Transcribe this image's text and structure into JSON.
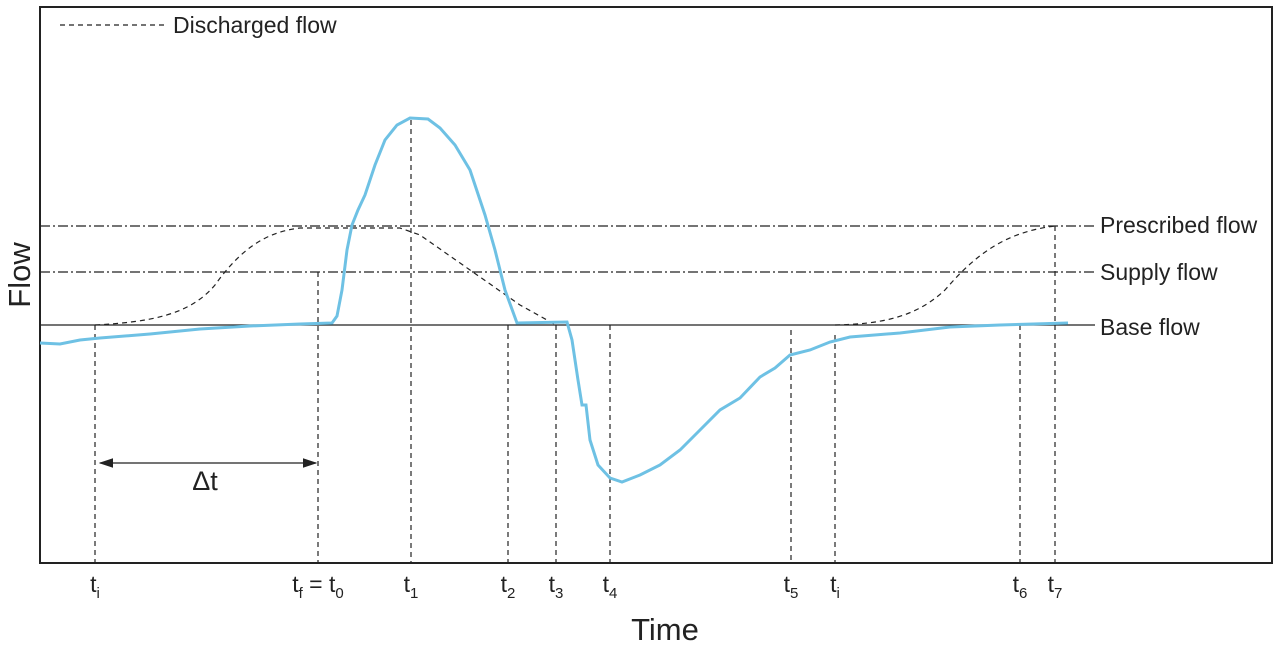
{
  "legend": {
    "label": "Discharged flow"
  },
  "levels": {
    "prescribed": "Prescribed flow",
    "supply": "Supply flow",
    "base": "Base flow"
  },
  "axes": {
    "y_label": "Flow",
    "x_label": "Time"
  },
  "interval_label": "Δt",
  "time_marks": [
    [
      "t",
      "i"
    ],
    [
      "t",
      "f",
      " = t",
      "0"
    ],
    [
      "t",
      "1"
    ],
    [
      "t",
      "2"
    ],
    [
      "t",
      "3"
    ],
    [
      "t",
      "4"
    ],
    [
      "t",
      "5"
    ],
    [
      "t",
      "i"
    ],
    [
      "t",
      "6"
    ],
    [
      "t",
      "7"
    ]
  ]
}
